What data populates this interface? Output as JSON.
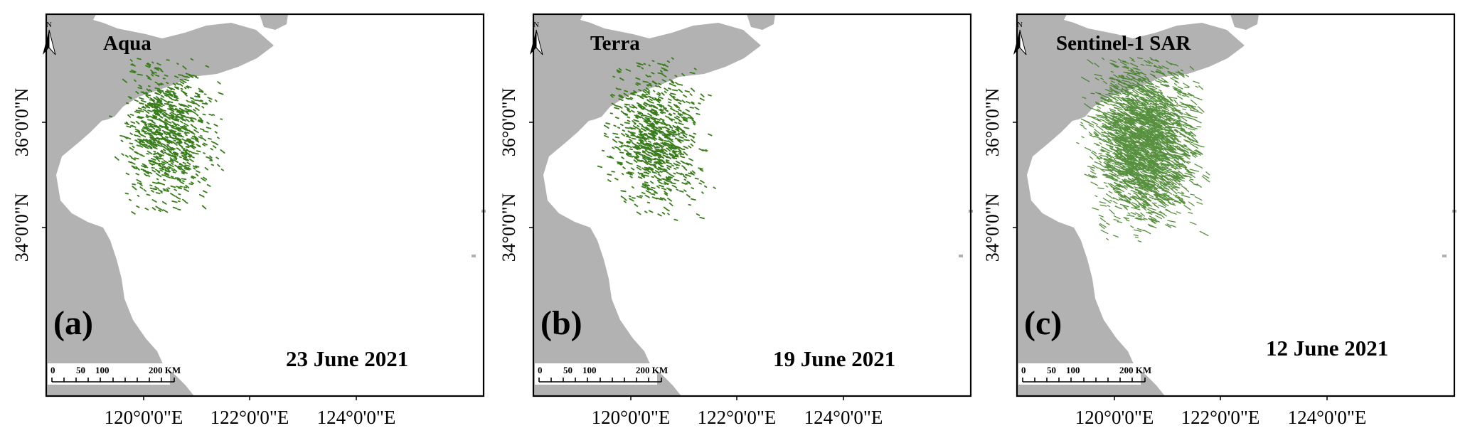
{
  "colors": {
    "land": "#b2b2b2",
    "algae": "#3a7d1c",
    "sea": "#ffffff",
    "frame": "#000000"
  },
  "panels": [
    {
      "id": "a",
      "label": "(a)",
      "sensor": "Aqua",
      "date": "23 June 2021",
      "coverage": "sparse-patches",
      "lat_labels": [
        "36°0'0\"N",
        "34°0'0\"N"
      ],
      "lon_labels": [
        "120°0'0\"E",
        "122°0'0\"E",
        "124°0'0\"E"
      ],
      "north_arrow": "N",
      "scale_bar": {
        "ticks": [
          "0",
          "50",
          "100"
        ],
        "end_label": "200 KM"
      }
    },
    {
      "id": "b",
      "label": "(b)",
      "sensor": "Terra",
      "date": "19 June 2021",
      "coverage": "sparse-patches",
      "lat_labels": [
        "36°0'0\"N",
        "34°0'0\"N"
      ],
      "lon_labels": [
        "120°0'0\"E",
        "122°0'0\"E",
        "124°0'0\"E"
      ],
      "north_arrow": "N",
      "scale_bar": {
        "ticks": [
          "0",
          "50",
          "100"
        ],
        "end_label": "200 KM"
      }
    },
    {
      "id": "c",
      "label": "(c)",
      "sensor": "Sentinel-1 SAR",
      "date": "12 June 2021",
      "coverage": "dense-filaments",
      "lat_labels": [
        "36°0'0\"N",
        "34°0'0\"N"
      ],
      "lon_labels": [
        "120°0'0\"E",
        "122°0'0\"E",
        "124°0'0\"E"
      ],
      "north_arrow": "N",
      "scale_bar": {
        "ticks": [
          "0",
          "50",
          "100"
        ],
        "end_label": "200 KM"
      }
    }
  ]
}
